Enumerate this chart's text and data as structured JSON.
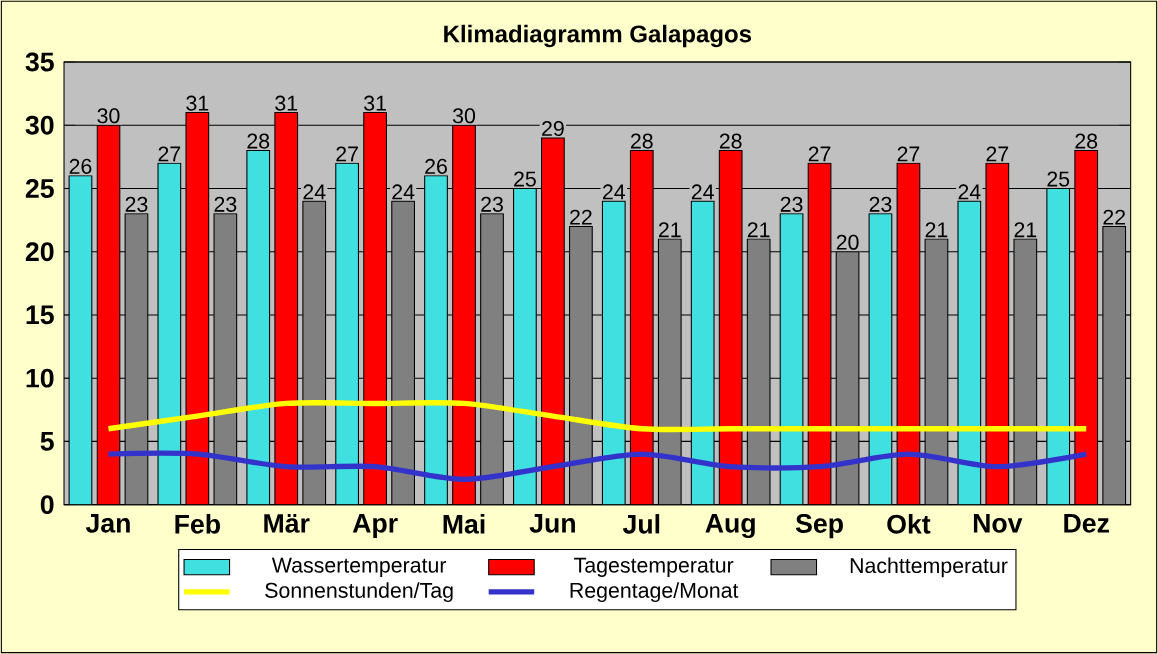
{
  "chart_data": {
    "type": "bar",
    "title": "Klimadiagramm Galapagos",
    "categories": [
      "Jan",
      "Feb",
      "Mär",
      "Apr",
      "Mai",
      "Jun",
      "Jul",
      "Aug",
      "Sep",
      "Okt",
      "Nov",
      "Dez"
    ],
    "series": [
      {
        "name": "Wassertemperatur",
        "color": "#40e0e0",
        "values": [
          26,
          27,
          28,
          27,
          26,
          25,
          24,
          24,
          23,
          23,
          24,
          25
        ],
        "value_labels": [
          "26",
          "27",
          "28",
          "27",
          "26",
          "25",
          "24",
          "24",
          "23",
          "23",
          "24",
          "25"
        ]
      },
      {
        "name": "Tagestemperatur",
        "color": "#ff0000",
        "values": [
          30,
          31,
          31,
          31,
          30,
          29,
          28,
          28,
          27,
          27,
          27,
          28
        ],
        "value_labels": [
          "30",
          "31",
          "31",
          "31",
          "30",
          "29",
          "28",
          "28",
          "27",
          "27",
          "27",
          "28"
        ]
      },
      {
        "name": "Nachttemperatur",
        "color": "#808080",
        "values": [
          23,
          23,
          24,
          24,
          23,
          22,
          21,
          21,
          20,
          21,
          21,
          22
        ],
        "value_labels": [
          "23",
          "23",
          "24",
          "24",
          "23",
          "22",
          "21",
          "21",
          "20",
          "21",
          "21",
          "22"
        ]
      },
      {
        "name": "Sonnenstunden/Tag",
        "type": "line",
        "color": "#ffff00",
        "values": [
          6,
          7,
          8,
          8,
          8,
          7,
          6,
          6,
          6,
          6,
          6,
          6
        ]
      },
      {
        "name": "Regentage/Monat",
        "type": "line",
        "color": "#3333cc",
        "values": [
          4,
          4,
          3,
          3,
          2,
          3,
          4,
          3,
          3,
          4,
          3,
          4
        ]
      }
    ],
    "ylim": [
      0,
      35
    ],
    "yticks": [
      0,
      5,
      10,
      15,
      20,
      25,
      30,
      35
    ],
    "grid": "y",
    "legend": "bottom",
    "marker": "none",
    "line_style": "solid"
  }
}
